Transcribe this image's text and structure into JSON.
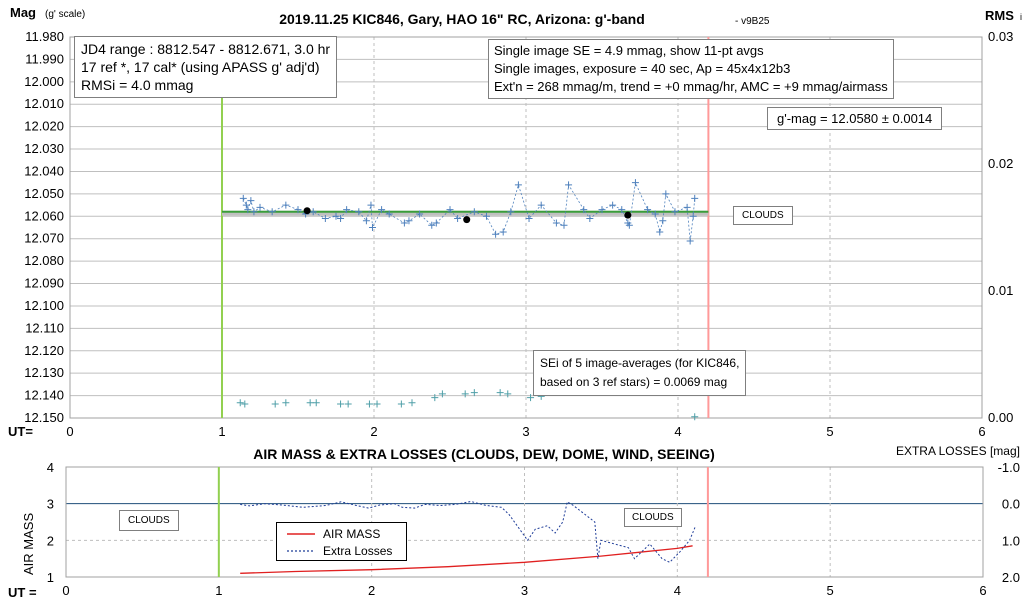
{
  "title": "2019.11.25 KIC846, Gary, HAO 16\" RC, Arizona: g'-band",
  "version": "- v9B25",
  "upper": {
    "ylabel": "Mag",
    "ylabel_sub": "(g' scale)",
    "y2label": "RMS",
    "y2label_sub": "i",
    "x_prefix": "UT=",
    "annotations": {
      "info": [
        "JD4 range : 8812.547 - 8812.671,  3.0  hr",
        "17 ref *, 17 cal* (using APASS g' adj'd)",
        "RMSi = 4.0 mmag"
      ],
      "setup": [
        "Single image SE = 4.9 mmag, show  11-pt avgs",
        "Single images, exposure = 40 sec, Ap = 45x4x12b3",
        "Ext'n = 268 mmag/m, trend =  +0 mmag/hr, AMC = +9 mmag/airmass"
      ],
      "result": "g'-mag = 12.0580 ± 0.0014",
      "clouds": "CLOUDS",
      "sei": [
        "SEi of 5 image-averages (for KIC846,",
        "based on 3 ref stars) = 0.0069 mag"
      ]
    }
  },
  "lower": {
    "title": "AIR MASS & EXTRA LOSSES (CLOUDS, DEW, DOME, WIND, SEEING)",
    "ylabel": "AIR MASS",
    "y2label": "EXTRA LOSSES [mag]",
    "x_prefix": "UT =",
    "clouds_left": "CLOUDS",
    "clouds_right": "CLOUDS",
    "legend": [
      "AIR MASS",
      "Extra Losses"
    ]
  },
  "colors": {
    "single": "#4f81bd",
    "avg_line": "#1f4e79",
    "avg_dot": "#000000",
    "mean_green": "#3a9d3a",
    "mean_gray": "#c0c0c0",
    "start_line": "#92d050",
    "end_line": "#ff9999",
    "rms": "#4f9fa8",
    "airmass": "#e02020",
    "losses": "#1f3d99",
    "grid": "#bfbfbf"
  },
  "chart_data": [
    {
      "type": "scatter",
      "title": "2019.11.25 KIC846, Gary, HAO 16\" RC, Arizona: g'-band",
      "xlabel": "UT=",
      "ylabel": "Mag (g' scale)",
      "y2label": "RMS i",
      "xlim": [
        0,
        6
      ],
      "x_ticks": [
        0,
        1,
        2,
        3,
        4,
        5,
        6
      ],
      "ylim": [
        12.15,
        11.98
      ],
      "y_ticks": [
        "11.980",
        "11.990",
        "12.000",
        "12.010",
        "12.020",
        "12.030",
        "12.040",
        "12.050",
        "12.060",
        "12.070",
        "12.080",
        "12.090",
        "12.100",
        "12.110",
        "12.120",
        "12.130",
        "12.140",
        "12.150"
      ],
      "y2lim": [
        0,
        0.03
      ],
      "y2_ticks": [
        "0.00",
        "0.01",
        "0.02",
        "0.03"
      ],
      "grid": true,
      "ut_start": 1.0,
      "ut_end": 4.2,
      "mean_mag": 12.058,
      "series": [
        {
          "values": [
            [
              1.14,
              12.052
            ],
            [
              1.16,
              12.055
            ],
            [
              1.17,
              12.057
            ],
            [
              1.19,
              12.053
            ],
            [
              1.21,
              12.058
            ],
            [
              1.25,
              12.056
            ],
            [
              1.33,
              12.058
            ],
            [
              1.42,
              12.055
            ],
            [
              1.5,
              12.057
            ],
            [
              1.55,
              12.059
            ],
            [
              1.6,
              12.058
            ],
            [
              1.68,
              12.061
            ],
            [
              1.75,
              12.06
            ],
            [
              1.78,
              12.061
            ],
            [
              1.82,
              12.057
            ],
            [
              1.9,
              12.058
            ],
            [
              1.95,
              12.062
            ],
            [
              1.98,
              12.055
            ],
            [
              1.99,
              12.065
            ],
            [
              2.05,
              12.057
            ],
            [
              2.1,
              12.059
            ],
            [
              2.2,
              12.063
            ],
            [
              2.23,
              12.062
            ],
            [
              2.3,
              12.059
            ],
            [
              2.38,
              12.064
            ],
            [
              2.41,
              12.063
            ],
            [
              2.5,
              12.057
            ],
            [
              2.55,
              12.061
            ],
            [
              2.66,
              12.058
            ],
            [
              2.74,
              12.06
            ],
            [
              2.8,
              12.068
            ],
            [
              2.85,
              12.067
            ],
            [
              2.9,
              12.058
            ],
            [
              2.95,
              12.046
            ],
            [
              3.02,
              12.061
            ],
            [
              3.1,
              12.055
            ],
            [
              3.2,
              12.063
            ],
            [
              3.25,
              12.064
            ],
            [
              3.28,
              12.046
            ],
            [
              3.38,
              12.057
            ],
            [
              3.42,
              12.061
            ],
            [
              3.5,
              12.057
            ],
            [
              3.57,
              12.055
            ],
            [
              3.63,
              12.057
            ],
            [
              3.67,
              12.063
            ],
            [
              3.68,
              12.064
            ],
            [
              3.72,
              12.045
            ],
            [
              3.8,
              12.057
            ],
            [
              3.85,
              12.059
            ],
            [
              3.88,
              12.067
            ],
            [
              3.9,
              12.062
            ],
            [
              3.92,
              12.05
            ],
            [
              3.98,
              12.058
            ],
            [
              4.06,
              12.056
            ],
            [
              4.08,
              12.071
            ],
            [
              4.1,
              12.06
            ],
            [
              4.11,
              12.052
            ]
          ]
        },
        {
          "values": [
            [
              1.56,
              12.0575
            ],
            [
              2.61,
              12.0615
            ],
            [
              3.67,
              12.0595
            ]
          ]
        },
        {
          "values": [
            [
              1.12,
              0.0012
            ],
            [
              1.15,
              0.0011
            ],
            [
              1.35,
              0.0011
            ],
            [
              1.42,
              0.0012
            ],
            [
              1.58,
              0.0012
            ],
            [
              1.62,
              0.0012
            ],
            [
              1.78,
              0.0011
            ],
            [
              1.83,
              0.0011
            ],
            [
              1.97,
              0.0011
            ],
            [
              2.02,
              0.0011
            ],
            [
              2.18,
              0.0011
            ],
            [
              2.25,
              0.0012
            ],
            [
              2.4,
              0.0016
            ],
            [
              2.45,
              0.0019
            ],
            [
              2.6,
              0.0019
            ],
            [
              2.66,
              0.002
            ],
            [
              2.83,
              0.002
            ],
            [
              2.88,
              0.0019
            ],
            [
              3.03,
              0.0016
            ],
            [
              3.1,
              0.0017
            ],
            [
              4.11,
              0.0001
            ]
          ]
        }
      ]
    },
    {
      "type": "line",
      "title": "AIR MASS & EXTRA LOSSES (CLOUDS, DEW, DOME, WIND, SEEING)",
      "xlabel": "UT =",
      "ylabel": "AIR MASS",
      "y2label": "EXTRA LOSSES [mag]",
      "xlim": [
        0,
        6
      ],
      "x_ticks": [
        0,
        1,
        2,
        3,
        4,
        5,
        6
      ],
      "ylim": [
        1,
        4
      ],
      "y_ticks": [
        1,
        2,
        3,
        4
      ],
      "y2lim": [
        2.0,
        -1.0
      ],
      "y2_ticks": [
        "-1.0",
        "0.0",
        "1.0",
        "2.0"
      ],
      "grid": true,
      "ut_start": 1.0,
      "ut_end": 4.2,
      "legend_position": "left-center",
      "series": [
        {
          "name": "AIR MASS",
          "values": [
            [
              1.14,
              1.1
            ],
            [
              1.5,
              1.15
            ],
            [
              2.0,
              1.2
            ],
            [
              2.5,
              1.28
            ],
            [
              3.0,
              1.4
            ],
            [
              3.5,
              1.57
            ],
            [
              4.0,
              1.78
            ],
            [
              4.1,
              1.85
            ]
          ]
        },
        {
          "name": "Extra Losses",
          "values": [
            [
              1.14,
              0.02
            ],
            [
              1.2,
              0.06
            ],
            [
              1.3,
              0.0
            ],
            [
              1.42,
              0.04
            ],
            [
              1.55,
              0.1
            ],
            [
              1.7,
              0.05
            ],
            [
              1.8,
              -0.05
            ],
            [
              1.9,
              0.05
            ],
            [
              1.98,
              0.12
            ],
            [
              2.05,
              0.04
            ],
            [
              2.15,
              0.0
            ],
            [
              2.2,
              0.1
            ],
            [
              2.28,
              0.12
            ],
            [
              2.35,
              0.02
            ],
            [
              2.45,
              0.05
            ],
            [
              2.55,
              0.02
            ],
            [
              2.65,
              -0.06
            ],
            [
              2.75,
              0.05
            ],
            [
              2.85,
              0.1
            ],
            [
              2.9,
              0.3
            ],
            [
              3.02,
              1.0
            ],
            [
              3.07,
              0.7
            ],
            [
              3.15,
              0.6
            ],
            [
              3.2,
              0.8
            ],
            [
              3.25,
              0.5
            ],
            [
              3.28,
              -0.05
            ],
            [
              3.32,
              0.05
            ],
            [
              3.46,
              0.5
            ],
            [
              3.48,
              1.5
            ],
            [
              3.5,
              1.0
            ],
            [
              3.68,
              1.2
            ],
            [
              3.72,
              1.5
            ],
            [
              3.82,
              1.1
            ],
            [
              3.9,
              1.5
            ],
            [
              3.95,
              1.6
            ],
            [
              4.02,
              1.3
            ],
            [
              4.08,
              1.0
            ],
            [
              4.12,
              0.6
            ]
          ]
        }
      ]
    }
  ]
}
